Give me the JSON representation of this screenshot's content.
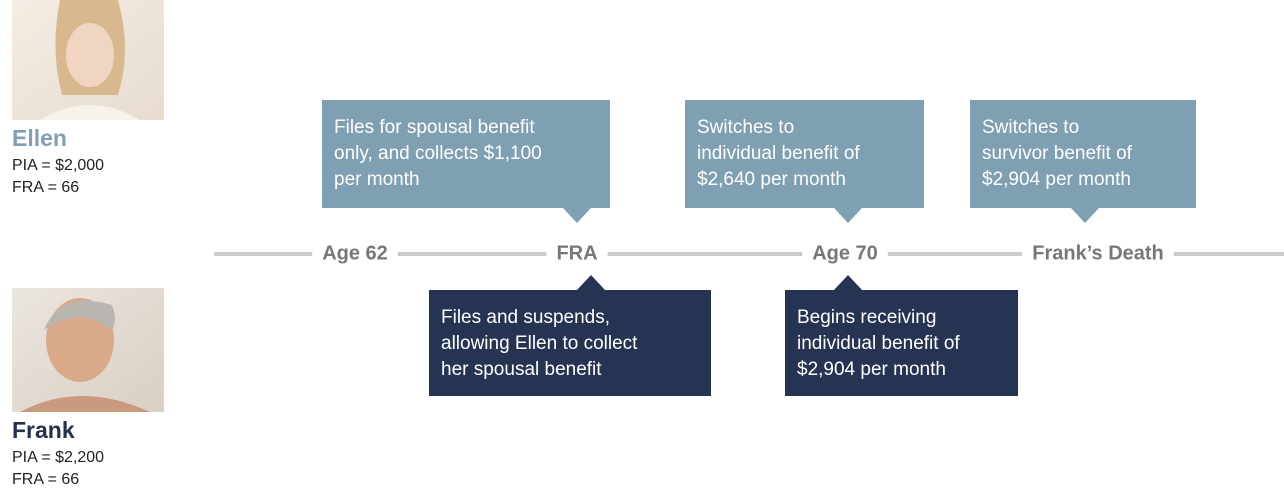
{
  "people": [
    {
      "name": "Ellen",
      "lines": [
        "PIA = $2,000",
        "FRA = 66"
      ]
    },
    {
      "name": "Frank",
      "lines": [
        "PIA = $2,200",
        "FRA = 66"
      ]
    }
  ],
  "timeline": {
    "labels": [
      "Age 62",
      "FRA",
      "Age 70",
      "Frank’s Death"
    ]
  },
  "ellen_events": [
    {
      "lines": [
        "Files for spousal benefit",
        "only, and collects $1,100",
        "per month"
      ]
    },
    {
      "lines": [
        "Switches to",
        "individual benefit of",
        "$2,640 per month"
      ]
    },
    {
      "lines": [
        "Switches to",
        "survivor benefit of",
        "$2,904 per month"
      ]
    }
  ],
  "frank_events": [
    {
      "lines": [
        "Files and suspends,",
        "allowing Ellen to collect",
        "her spousal benefit"
      ]
    },
    {
      "lines": [
        "Begins receiving",
        "individual benefit of",
        "$2,904 per month"
      ]
    }
  ]
}
